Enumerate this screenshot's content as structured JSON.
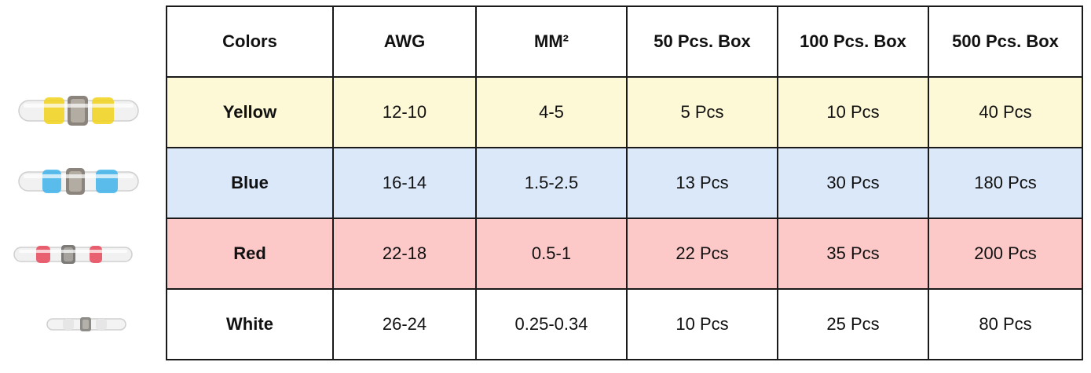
{
  "colors": {
    "yellow_row": "#fdf8d6",
    "blue_row": "#dbe8fa",
    "red_row": "#fcc8c8",
    "white_row": "#ffffff",
    "border": "#1a1a1a"
  },
  "table": {
    "headers": [
      "Colors",
      "AWG",
      "MM²",
      "50 Pcs. Box",
      "100 Pcs. Box",
      "500 Pcs. Box"
    ],
    "rows": [
      {
        "color": "Yellow",
        "awg": "12-10",
        "mm2": "4-5",
        "box50": "5 Pcs",
        "box100": "10 Pcs",
        "box500": "40 Pcs"
      },
      {
        "color": "Blue",
        "awg": "16-14",
        "mm2": "1.5-2.5",
        "box50": "13 Pcs",
        "box100": "30 Pcs",
        "box500": "180 Pcs"
      },
      {
        "color": "Red",
        "awg": "22-18",
        "mm2": "0.5-1",
        "box50": "22 Pcs",
        "box100": "35 Pcs",
        "box500": "200 Pcs"
      },
      {
        "color": "White",
        "awg": "26-24",
        "mm2": "0.25-0.34",
        "box50": "10 Pcs",
        "box100": "25 Pcs",
        "box500": "80 Pcs"
      }
    ]
  },
  "connector_images": [
    {
      "name": "yellow-connector-image",
      "ring_color": "#f2d21a"
    },
    {
      "name": "blue-connector-image",
      "ring_color": "#3fb3ea"
    },
    {
      "name": "red-connector-image",
      "ring_color": "#e8485a"
    },
    {
      "name": "white-connector-image",
      "ring_color": "#e6e6e6"
    }
  ]
}
